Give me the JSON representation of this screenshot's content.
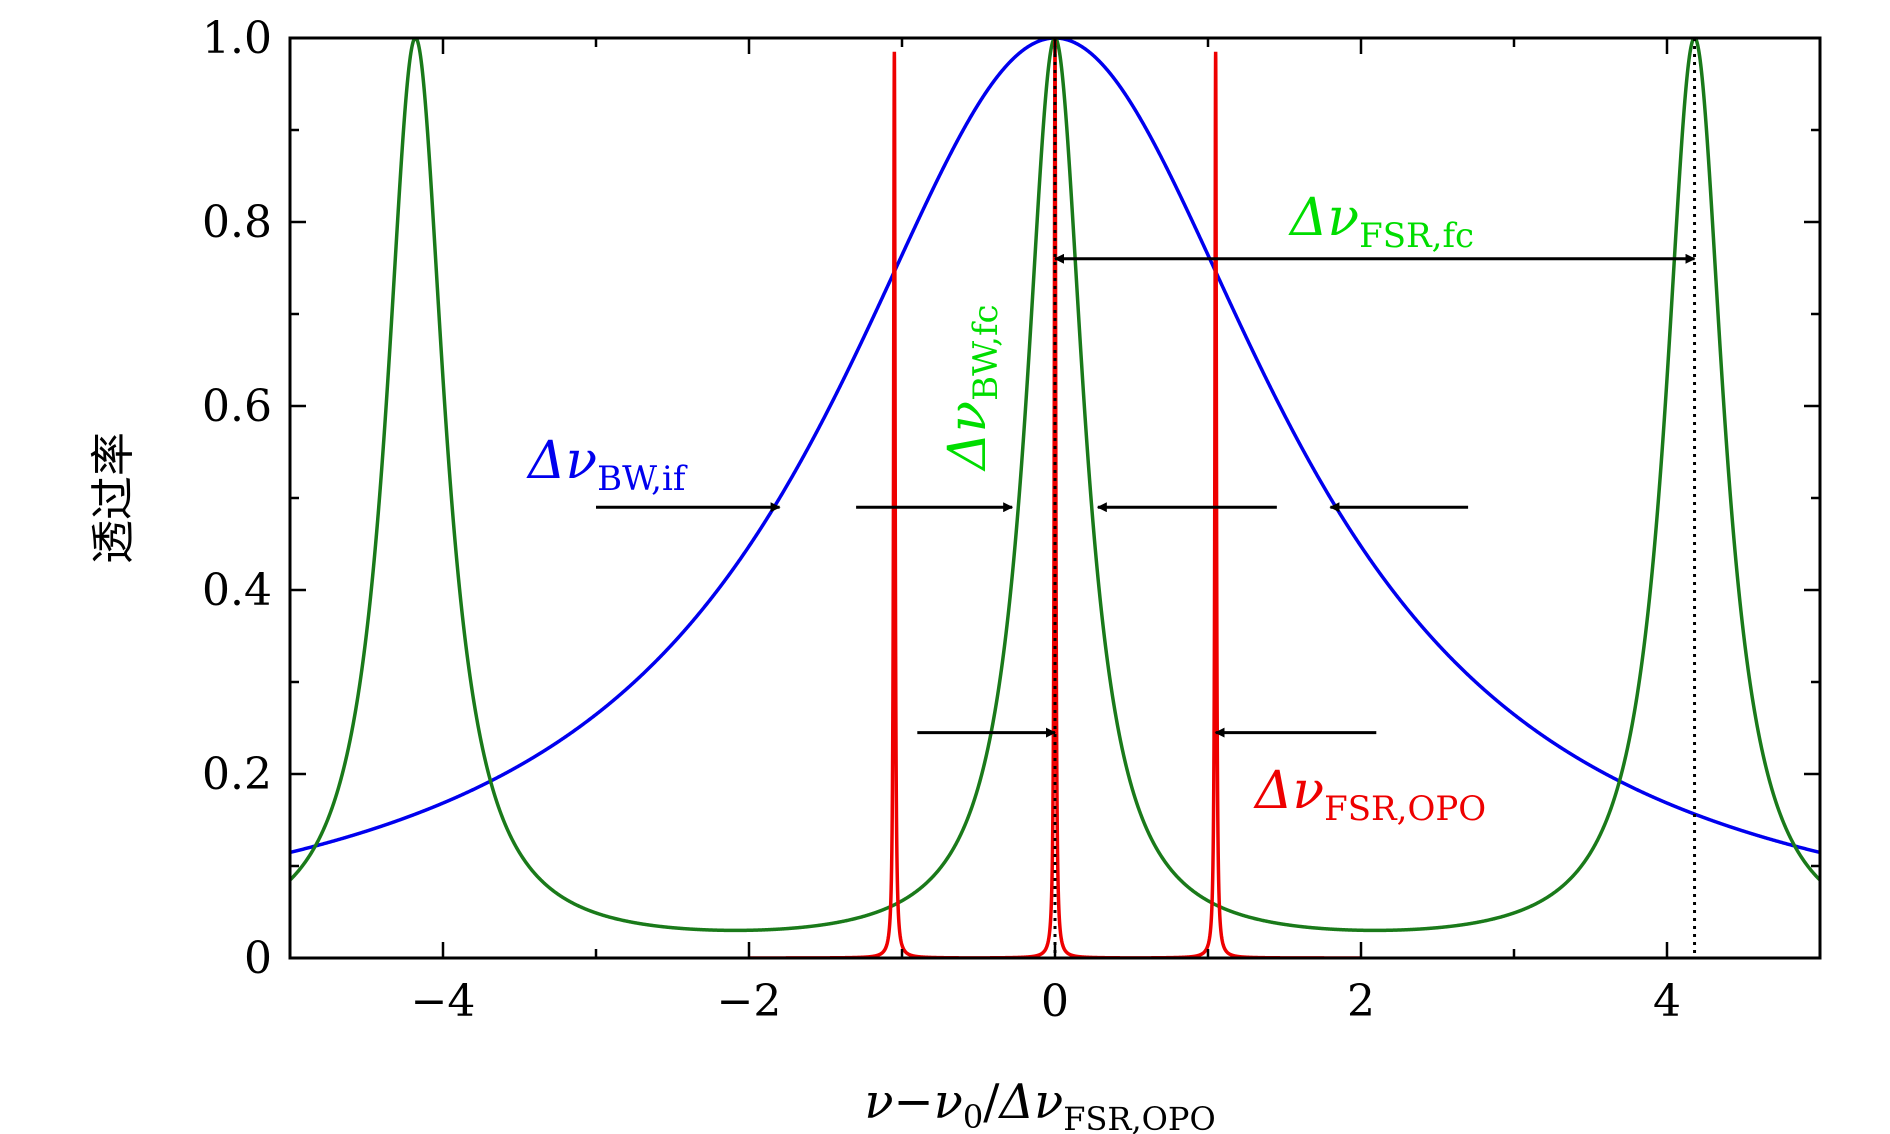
{
  "chart_data": {
    "type": "line",
    "title": "",
    "xlabel": "ν−ν0/ΔνFSR,OPO",
    "xlabel_parts": {
      "nu": "ν",
      "minus": "−",
      "nu0": "ν",
      "nu0_sub": "0",
      "slash": "/",
      "delta": "Δν",
      "sub": "FSR,OPO"
    },
    "ylabel": "透过率",
    "xlim": [
      -5,
      5
    ],
    "ylim": [
      0,
      1.0
    ],
    "x_ticks": [
      {
        "value": -4,
        "label": "−4"
      },
      {
        "value": -2,
        "label": "−2"
      },
      {
        "value": 0,
        "label": "0"
      },
      {
        "value": 2,
        "label": "2"
      },
      {
        "value": 4,
        "label": "4"
      }
    ],
    "y_ticks": [
      {
        "value": 0,
        "label": "0"
      },
      {
        "value": 0.2,
        "label": "0.2"
      },
      {
        "value": 0.4,
        "label": "0.4"
      },
      {
        "value": 0.6,
        "label": "0.6"
      },
      {
        "value": 0.8,
        "label": "0.8"
      },
      {
        "value": 1.0,
        "label": "1.0"
      }
    ],
    "grid": false,
    "legend": "none",
    "series": [
      {
        "color": "#0000ee",
        "function": "lorentzian",
        "center": 0,
        "hwhm": 1.8,
        "peak": 1.0,
        "points": [
          [
            -5,
            0.115
          ],
          [
            -4,
            0.16
          ],
          [
            -2,
            0.45
          ],
          [
            -1,
            0.76
          ],
          [
            0,
            1.0
          ],
          [
            1,
            0.76
          ],
          [
            2,
            0.45
          ],
          [
            4,
            0.16
          ],
          [
            5,
            0.115
          ]
        ]
      },
      {
        "color": "#1a7a1a",
        "function": "airy",
        "fsr": 4.18,
        "min": 0.03,
        "peak": 1.0,
        "peak_positions": [
          -4.18,
          0,
          4.18
        ],
        "points": [
          [
            -5,
            0.085
          ],
          [
            -4.18,
            1.0
          ],
          [
            -2,
            0.03
          ],
          [
            -1,
            0.055
          ],
          [
            0,
            1.0
          ],
          [
            1,
            0.055
          ],
          [
            2,
            0.03
          ],
          [
            4.18,
            1.0
          ],
          [
            5,
            0.085
          ]
        ]
      },
      {
        "color": "#ee0000",
        "function": "airy",
        "fsr": 1.05,
        "min": 0.0,
        "range": [
          -2,
          2
        ],
        "peaks": [
          [
            -1.05,
            0.985
          ],
          [
            0,
            1.0
          ],
          [
            1.05,
            0.985
          ]
        ],
        "points": [
          [
            -2,
            0.0
          ],
          [
            -1.05,
            0.985
          ],
          [
            -0.5,
            0.0
          ],
          [
            0,
            1.0
          ],
          [
            0.5,
            0.0
          ],
          [
            1.05,
            0.985
          ],
          [
            2,
            0.0
          ]
        ]
      }
    ],
    "dotted_lines": [
      {
        "x": 0,
        "color": "#000000"
      },
      {
        "x": 4.18,
        "color": "#000000"
      }
    ],
    "annotations": [
      {
        "id": "bw-if",
        "main": "Δν",
        "sub": "BW,if",
        "color": "#0000ee"
      },
      {
        "id": "bw-fc",
        "main": "Δν",
        "sub": "BW,fc",
        "color": "#00dd00",
        "rotated": true
      },
      {
        "id": "fsr-fc",
        "main": "Δν",
        "sub": "FSR,fc",
        "color": "#00dd00"
      },
      {
        "id": "fsr-opo",
        "main": "Δν",
        "sub": "FSR,OPO",
        "color": "#ee0000"
      }
    ],
    "arrows": [
      {
        "from": [
          -3.0,
          0.49
        ],
        "to": [
          -1.8,
          0.49
        ],
        "meaning": "BW,if left edge"
      },
      {
        "from": [
          2.7,
          0.49
        ],
        "to": [
          1.8,
          0.49
        ],
        "meaning": "BW,if right edge"
      },
      {
        "from": [
          -1.3,
          0.49
        ],
        "to": [
          -0.28,
          0.49
        ],
        "meaning": "BW,fc left edge"
      },
      {
        "from": [
          1.45,
          0.49
        ],
        "to": [
          0.28,
          0.49
        ],
        "meaning": "BW,fc right edge"
      },
      {
        "from": [
          -0.9,
          0.245
        ],
        "to": [
          0.0,
          0.245
        ],
        "meaning": "FSR,OPO left"
      },
      {
        "from": [
          2.1,
          0.245
        ],
        "to": [
          1.05,
          0.245
        ],
        "meaning": "FSR,OPO right"
      },
      {
        "from": [
          0.0,
          0.76
        ],
        "to": [
          4.18,
          0.76
        ],
        "double": true,
        "meaning": "FSR,fc span"
      }
    ]
  }
}
